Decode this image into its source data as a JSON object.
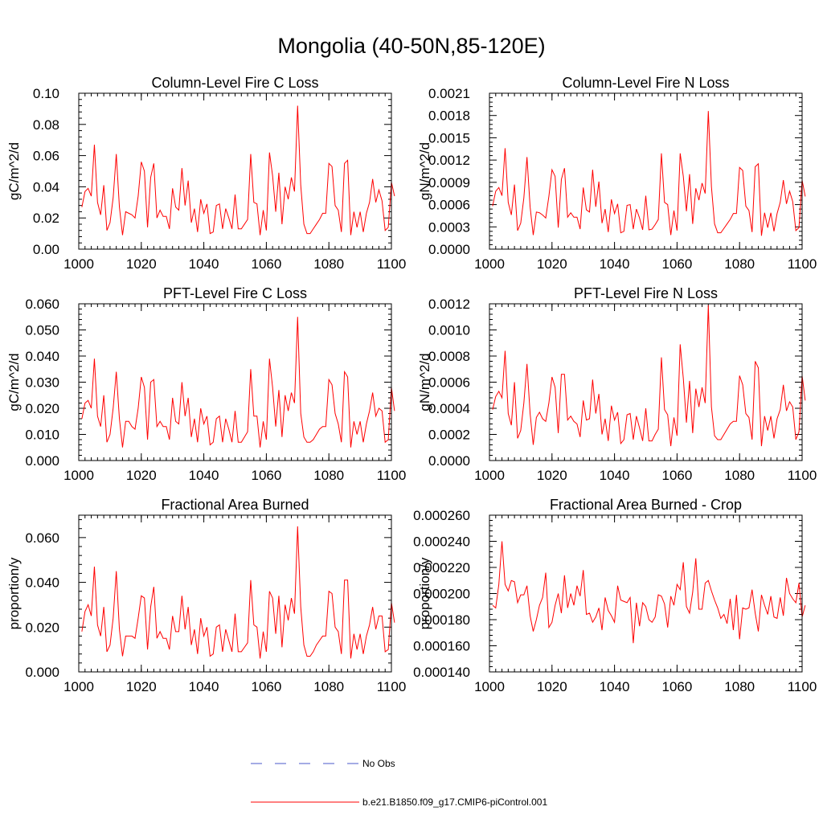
{
  "figure": {
    "title": "Mongolia (40-50N,85-120E)"
  },
  "legend": {
    "entries": [
      {
        "label": "No Obs",
        "color": "#4a5acb",
        "style": "dashed"
      },
      {
        "label": "b.e21.B1850.f09_g17.CMIP6-piControl.001",
        "color": "#ff0000",
        "style": "solid"
      }
    ]
  },
  "chart_data": [
    {
      "type": "line",
      "title": "Column-Level Fire C Loss",
      "ylabel": "gC/m^2/d",
      "xlabel": "",
      "xlim": [
        1000,
        1100
      ],
      "ylim": [
        0.0,
        0.1
      ],
      "xticks": [
        1000,
        1020,
        1040,
        1060,
        1080,
        1100
      ],
      "yticks": [
        0.0,
        0.02,
        0.04,
        0.06,
        0.08,
        0.1
      ],
      "ytick_labels": [
        "0.00",
        "0.02",
        "0.04",
        "0.06",
        "0.08",
        "0.10"
      ],
      "grid": false,
      "series": [
        {
          "name": "b.e21.B1850.f09_g17.CMIP6-piControl.001",
          "color": "#ff0000",
          "x_start": 1001,
          "x_step": 1,
          "values": [
            0.027,
            0.037,
            0.039,
            0.034,
            0.067,
            0.03,
            0.022,
            0.041,
            0.012,
            0.017,
            0.033,
            0.061,
            0.027,
            0.009,
            0.024,
            0.023,
            0.022,
            0.02,
            0.034,
            0.056,
            0.05,
            0.014,
            0.046,
            0.055,
            0.02,
            0.025,
            0.021,
            0.021,
            0.013,
            0.039,
            0.027,
            0.025,
            0.052,
            0.028,
            0.044,
            0.017,
            0.026,
            0.011,
            0.032,
            0.023,
            0.029,
            0.01,
            0.011,
            0.028,
            0.029,
            0.013,
            0.026,
            0.02,
            0.013,
            0.035,
            0.013,
            0.013,
            0.016,
            0.019,
            0.061,
            0.03,
            0.029,
            0.009,
            0.025,
            0.012,
            0.062,
            0.047,
            0.024,
            0.049,
            0.016,
            0.04,
            0.032,
            0.046,
            0.037,
            0.092,
            0.041,
            0.016,
            0.01,
            0.01,
            0.013,
            0.016,
            0.019,
            0.023,
            0.023,
            0.055,
            0.053,
            0.028,
            0.025,
            0.011,
            0.055,
            0.057,
            0.009,
            0.024,
            0.014,
            0.024,
            0.011,
            0.023,
            0.03,
            0.045,
            0.03,
            0.038,
            0.031,
            0.012,
            0.014,
            0.043,
            0.034
          ]
        }
      ]
    },
    {
      "type": "line",
      "title": "Column-Level Fire N Loss",
      "ylabel": "gN/m^2/d",
      "xlabel": "",
      "xlim": [
        1000,
        1100
      ],
      "ylim": [
        0.0,
        0.0021
      ],
      "xticks": [
        1000,
        1020,
        1040,
        1060,
        1080,
        1100
      ],
      "yticks": [
        0.0,
        0.0003,
        0.0006,
        0.0009,
        0.0012,
        0.0015,
        0.0018,
        0.0021
      ],
      "ytick_labels": [
        "0.0000",
        "0.0003",
        "0.0006",
        "0.0009",
        "0.0012",
        "0.0015",
        "0.0018",
        "0.0021"
      ],
      "grid": false,
      "series": [
        {
          "name": "b.e21.B1850.f09_g17.CMIP6-piControl.001",
          "color": "#ff0000",
          "x_start": 1001,
          "x_step": 1,
          "values": [
            0.00058,
            0.00078,
            0.00083,
            0.00072,
            0.00136,
            0.00063,
            0.00046,
            0.00087,
            0.00025,
            0.00035,
            0.00069,
            0.00124,
            0.00057,
            0.00019,
            0.0005,
            0.00049,
            0.00046,
            0.00042,
            0.00071,
            0.00107,
            0.00098,
            0.00029,
            0.00094,
            0.00109,
            0.00043,
            0.00049,
            0.00043,
            0.00043,
            0.00027,
            0.00083,
            0.00053,
            0.0005,
            0.00107,
            0.00057,
            0.00091,
            0.00035,
            0.00054,
            0.00023,
            0.00067,
            0.00048,
            0.00061,
            0.00022,
            0.00024,
            0.00059,
            0.0006,
            0.00027,
            0.00054,
            0.00042,
            0.00026,
            0.00072,
            0.00026,
            0.00027,
            0.00033,
            0.0004,
            0.00129,
            0.00063,
            0.0006,
            0.00019,
            0.00052,
            0.00025,
            0.00129,
            0.00098,
            0.00051,
            0.00101,
            0.00034,
            0.00082,
            0.00066,
            0.00089,
            0.00075,
            0.00186,
            0.00084,
            0.00034,
            0.00022,
            0.00022,
            0.00028,
            0.00034,
            0.0004,
            0.00048,
            0.00048,
            0.0011,
            0.00106,
            0.00058,
            0.00052,
            0.00023,
            0.00111,
            0.00115,
            0.00018,
            0.00049,
            0.00029,
            0.00049,
            0.00024,
            0.00048,
            0.00063,
            0.00093,
            0.00061,
            0.00078,
            0.00064,
            0.00025,
            0.00029,
            0.00093,
            0.00071
          ]
        }
      ]
    },
    {
      "type": "line",
      "title": "PFT-Level Fire C Loss",
      "ylabel": "gC/m^2/d",
      "xlabel": "",
      "xlim": [
        1000,
        1100
      ],
      "ylim": [
        0.0,
        0.06
      ],
      "xticks": [
        1000,
        1020,
        1040,
        1060,
        1080,
        1100
      ],
      "yticks": [
        0.0,
        0.01,
        0.02,
        0.03,
        0.04,
        0.05,
        0.06
      ],
      "ytick_labels": [
        "0.000",
        "0.010",
        "0.020",
        "0.030",
        "0.040",
        "0.050",
        "0.060"
      ],
      "grid": false,
      "series": [
        {
          "name": "b.e21.B1850.f09_g17.CMIP6-piControl.001",
          "color": "#ff0000",
          "x_start": 1001,
          "x_step": 1,
          "values": [
            0.016,
            0.022,
            0.023,
            0.02,
            0.039,
            0.017,
            0.013,
            0.025,
            0.007,
            0.01,
            0.02,
            0.034,
            0.016,
            0.005,
            0.015,
            0.015,
            0.013,
            0.012,
            0.02,
            0.032,
            0.028,
            0.008,
            0.03,
            0.031,
            0.013,
            0.015,
            0.013,
            0.013,
            0.008,
            0.024,
            0.015,
            0.014,
            0.03,
            0.017,
            0.024,
            0.009,
            0.016,
            0.007,
            0.02,
            0.014,
            0.017,
            0.006,
            0.007,
            0.016,
            0.017,
            0.007,
            0.016,
            0.012,
            0.007,
            0.019,
            0.007,
            0.007,
            0.009,
            0.011,
            0.035,
            0.017,
            0.017,
            0.005,
            0.015,
            0.008,
            0.039,
            0.028,
            0.013,
            0.027,
            0.009,
            0.025,
            0.019,
            0.026,
            0.022,
            0.055,
            0.018,
            0.009,
            0.007,
            0.007,
            0.008,
            0.01,
            0.012,
            0.013,
            0.013,
            0.031,
            0.029,
            0.018,
            0.014,
            0.007,
            0.034,
            0.032,
            0.005,
            0.015,
            0.01,
            0.015,
            0.007,
            0.014,
            0.019,
            0.026,
            0.017,
            0.02,
            0.019,
            0.007,
            0.008,
            0.028,
            0.019
          ]
        }
      ]
    },
    {
      "type": "line",
      "title": "PFT-Level Fire N Loss",
      "ylabel": "gN/m^2/d",
      "xlabel": "",
      "xlim": [
        1000,
        1100
      ],
      "ylim": [
        0.0,
        0.0012
      ],
      "xticks": [
        1000,
        1020,
        1040,
        1060,
        1080,
        1100
      ],
      "yticks": [
        0.0,
        0.0002,
        0.0004,
        0.0006,
        0.0008,
        0.001,
        0.0012
      ],
      "ytick_labels": [
        "0.0000",
        "0.0002",
        "0.0004",
        "0.0006",
        "0.0008",
        "0.0010",
        "0.0012"
      ],
      "grid": false,
      "series": [
        {
          "name": "b.e21.B1850.f09_g17.CMIP6-piControl.001",
          "color": "#ff0000",
          "x_start": 1001,
          "x_step": 1,
          "values": [
            0.00039,
            0.00049,
            0.00053,
            0.00048,
            0.00084,
            0.00036,
            0.00027,
            0.0006,
            0.00017,
            0.00023,
            0.00044,
            0.00074,
            0.00036,
            0.00012,
            0.00033,
            0.00037,
            0.00032,
            0.0003,
            0.00044,
            0.00064,
            0.00056,
            0.00021,
            0.00066,
            0.00066,
            0.00031,
            0.00034,
            0.0003,
            0.00028,
            0.00018,
            0.00046,
            0.00031,
            0.00032,
            0.00062,
            0.00036,
            0.00051,
            0.0002,
            0.00032,
            0.00015,
            0.00042,
            0.00031,
            0.00037,
            0.00013,
            0.00016,
            0.00035,
            0.00036,
            0.00016,
            0.00034,
            0.00025,
            0.00015,
            0.0004,
            0.00015,
            0.00015,
            0.0002,
            0.00024,
            0.00079,
            0.00039,
            0.00035,
            0.00011,
            0.00033,
            0.00019,
            0.00089,
            0.00063,
            0.00029,
            0.00061,
            0.00021,
            0.00055,
            0.00041,
            0.00056,
            0.00044,
            0.00119,
            0.00041,
            0.00019,
            0.00016,
            0.00016,
            0.0002,
            0.00024,
            0.00028,
            0.0003,
            0.0003,
            0.00065,
            0.00058,
            0.00036,
            0.00033,
            0.00016,
            0.00076,
            0.00071,
            0.00011,
            0.00034,
            0.00023,
            0.00034,
            0.00017,
            0.00032,
            0.00039,
            0.00058,
            0.00038,
            0.00045,
            0.00041,
            0.00016,
            0.00022,
            0.00065,
            0.00046
          ]
        }
      ]
    },
    {
      "type": "line",
      "title": "Fractional Area Burned",
      "ylabel": "proportion/y",
      "xlabel": "",
      "xlim": [
        1000,
        1100
      ],
      "ylim": [
        0.0,
        0.07
      ],
      "xticks": [
        1000,
        1020,
        1040,
        1060,
        1080,
        1100
      ],
      "yticks": [
        0.0,
        0.02,
        0.04,
        0.06
      ],
      "ytick_labels": [
        "0.000",
        "0.020",
        "0.040",
        "0.060"
      ],
      "grid": false,
      "series": [
        {
          "name": "b.e21.B1850.f09_g17.CMIP6-piControl.001",
          "color": "#ff0000",
          "x_start": 1001,
          "x_step": 1,
          "values": [
            0.018,
            0.027,
            0.03,
            0.025,
            0.047,
            0.021,
            0.016,
            0.029,
            0.009,
            0.012,
            0.024,
            0.045,
            0.019,
            0.007,
            0.016,
            0.016,
            0.016,
            0.015,
            0.024,
            0.034,
            0.033,
            0.01,
            0.029,
            0.038,
            0.015,
            0.018,
            0.015,
            0.015,
            0.01,
            0.025,
            0.018,
            0.018,
            0.034,
            0.019,
            0.029,
            0.012,
            0.019,
            0.008,
            0.024,
            0.016,
            0.02,
            0.007,
            0.008,
            0.02,
            0.021,
            0.009,
            0.019,
            0.014,
            0.009,
            0.026,
            0.009,
            0.009,
            0.011,
            0.013,
            0.041,
            0.021,
            0.02,
            0.006,
            0.018,
            0.009,
            0.036,
            0.033,
            0.017,
            0.034,
            0.011,
            0.03,
            0.023,
            0.033,
            0.026,
            0.065,
            0.029,
            0.012,
            0.007,
            0.007,
            0.009,
            0.012,
            0.014,
            0.016,
            0.016,
            0.036,
            0.035,
            0.02,
            0.018,
            0.008,
            0.041,
            0.041,
            0.006,
            0.017,
            0.01,
            0.017,
            0.008,
            0.016,
            0.021,
            0.029,
            0.019,
            0.025,
            0.025,
            0.009,
            0.01,
            0.031,
            0.022
          ]
        }
      ]
    },
    {
      "type": "line",
      "title": "Fractional Area Burned - Crop",
      "ylabel": "proportion/y",
      "xlabel": "",
      "xlim": [
        1000,
        1100
      ],
      "ylim": [
        0.00014,
        0.00026
      ],
      "xticks": [
        1000,
        1020,
        1040,
        1060,
        1080,
        1100
      ],
      "yticks": [
        0.00014,
        0.00016,
        0.00018,
        0.0002,
        0.00022,
        0.00024,
        0.00026
      ],
      "ytick_labels": [
        "0.000140",
        "0.000160",
        "0.000180",
        "0.000200",
        "0.000220",
        "0.000240",
        "0.000260"
      ],
      "grid": false,
      "series": [
        {
          "name": "b.e21.B1850.f09_g17.CMIP6-piControl.001",
          "color": "#ff0000",
          "x_start": 1001,
          "x_step": 1,
          "values": [
            0.000191,
            0.000189,
            0.000207,
            0.00024,
            0.000207,
            0.000202,
            0.00021,
            0.000209,
            0.000193,
            0.000199,
            0.000199,
            0.000206,
            0.000183,
            0.000171,
            0.00018,
            0.000191,
            0.000197,
            0.000216,
            0.000174,
            0.000178,
            0.000191,
            0.0002,
            0.000185,
            0.000214,
            0.000189,
            0.0002,
            0.000191,
            0.000206,
            0.000198,
            0.000218,
            0.000184,
            0.000185,
            0.000178,
            0.000182,
            0.000189,
            0.000172,
            0.000197,
            0.000187,
            0.000183,
            0.000178,
            0.000206,
            0.000195,
            0.000194,
            0.000193,
            0.000197,
            0.000162,
            0.000193,
            0.000175,
            0.000193,
            0.00019,
            0.00018,
            0.000178,
            0.000182,
            0.000199,
            0.000198,
            0.000192,
            0.000174,
            0.000198,
            0.000191,
            0.000207,
            0.000203,
            0.000224,
            0.00019,
            0.000185,
            0.000201,
            0.000227,
            0.000188,
            0.000188,
            0.000208,
            0.00021,
            0.000202,
            0.000195,
            0.000189,
            0.000181,
            0.000184,
            0.000177,
            0.000196,
            0.000172,
            0.000199,
            0.000165,
            0.000189,
            0.000188,
            0.000189,
            0.000203,
            0.000185,
            0.000171,
            0.000199,
            0.000191,
            0.000184,
            0.000198,
            0.000182,
            0.000181,
            0.000197,
            0.000183,
            0.000212,
            0.0002,
            0.000196,
            0.000193,
            0.000208,
            0.000182,
            0.000191
          ]
        }
      ]
    }
  ]
}
